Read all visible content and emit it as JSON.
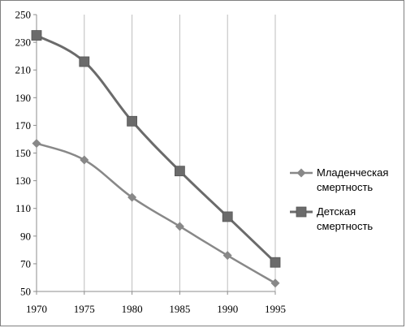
{
  "chart_data": {
    "type": "line",
    "title": "",
    "xlabel": "",
    "ylabel": "",
    "x": [
      1970,
      1975,
      1980,
      1985,
      1990,
      1995
    ],
    "x_tick_labels": [
      "1970",
      "1975",
      "1980",
      "1985",
      "1990",
      "1995"
    ],
    "ylim": [
      50,
      250
    ],
    "y_ticks": [
      50,
      70,
      90,
      110,
      130,
      150,
      170,
      190,
      210,
      230,
      250
    ],
    "y_tick_labels": [
      "50",
      "70",
      "90",
      "110",
      "130",
      "150",
      "170",
      "190",
      "210",
      "230",
      "250"
    ],
    "grid": "vertical",
    "legend_position": "right",
    "series": [
      {
        "name": [
          "Младенческая",
          "смертность"
        ],
        "values": [
          157,
          145,
          118,
          97,
          76,
          56
        ],
        "marker": "diamond",
        "color": "#888888"
      },
      {
        "name": [
          "Детская",
          "смертность"
        ],
        "values": [
          235,
          216,
          173,
          137,
          104,
          71
        ],
        "marker": "square",
        "color": "#6b6b6b"
      }
    ]
  }
}
